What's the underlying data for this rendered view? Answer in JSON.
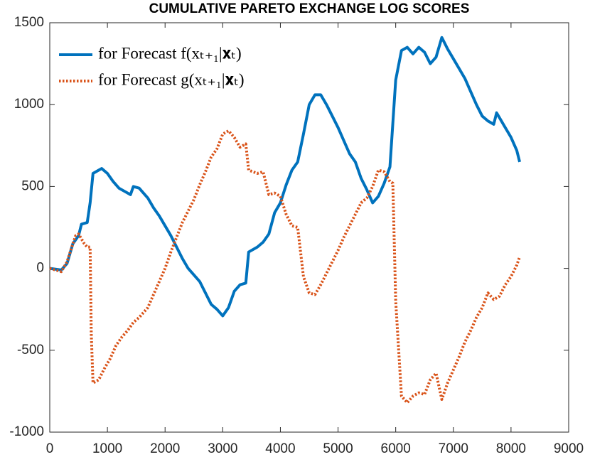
{
  "chart_data": {
    "type": "line",
    "title": "CUMULATIVE  PARETO  EXCHANGE  LOG SCORES",
    "xlim": [
      0,
      9000
    ],
    "xticks": [
      0,
      1000,
      2000,
      3000,
      4000,
      5000,
      6000,
      7000,
      8000,
      9000
    ],
    "ylim": [
      -1000,
      1500
    ],
    "yticks": [
      -1000,
      -500,
      0,
      500,
      1000,
      1500
    ],
    "legend": "upper left",
    "series": [
      {
        "name": "for Forecast f(xₜ₊₁|𝐱ₜ)",
        "color": "#0072bd",
        "style": "solid",
        "x": [
          0,
          200,
          300,
          400,
          500,
          550,
          650,
          700,
          750,
          850,
          900,
          1000,
          1100,
          1200,
          1300,
          1400,
          1450,
          1550,
          1700,
          1800,
          1900,
          2000,
          2100,
          2200,
          2300,
          2400,
          2500,
          2600,
          2700,
          2800,
          2900,
          3000,
          3100,
          3200,
          3300,
          3400,
          3450,
          3600,
          3700,
          3800,
          3900,
          4000,
          4100,
          4200,
          4300,
          4400,
          4500,
          4600,
          4700,
          4800,
          4900,
          5000,
          5100,
          5200,
          5300,
          5400,
          5500,
          5600,
          5700,
          5800,
          5900,
          6000,
          6100,
          6200,
          6300,
          6400,
          6500,
          6600,
          6700,
          6800,
          6900,
          7000,
          7100,
          7200,
          7300,
          7400,
          7500,
          7600,
          7700,
          7750,
          7800,
          7900,
          8000,
          8100,
          8150
        ],
        "values": [
          0,
          -10,
          30,
          150,
          200,
          270,
          280,
          400,
          580,
          600,
          610,
          580,
          530,
          490,
          470,
          450,
          500,
          490,
          430,
          370,
          320,
          260,
          200,
          130,
          60,
          0,
          -40,
          -80,
          -150,
          -220,
          -250,
          -290,
          -240,
          -140,
          -100,
          -90,
          100,
          130,
          160,
          210,
          340,
          400,
          510,
          600,
          650,
          820,
          1000,
          1060,
          1060,
          1000,
          930,
          860,
          780,
          700,
          650,
          550,
          480,
          400,
          440,
          520,
          620,
          1150,
          1330,
          1350,
          1310,
          1350,
          1320,
          1250,
          1290,
          1410,
          1340,
          1280,
          1220,
          1160,
          1080,
          1000,
          930,
          900,
          880,
          950,
          920,
          860,
          800,
          720,
          650
        ]
      },
      {
        "name": "for Forecast g(xₜ₊₁|𝐱ₜ)",
        "color": "#d95319",
        "style": "dotted",
        "x": [
          0,
          200,
          300,
          400,
          450,
          500,
          550,
          600,
          650,
          700,
          720,
          750,
          850,
          950,
          1050,
          1150,
          1250,
          1350,
          1450,
          1550,
          1700,
          1800,
          1900,
          2000,
          2100,
          2200,
          2300,
          2400,
          2500,
          2600,
          2700,
          2800,
          2900,
          3000,
          3100,
          3200,
          3300,
          3400,
          3450,
          3600,
          3700,
          3800,
          3900,
          4000,
          4100,
          4200,
          4300,
          4400,
          4500,
          4600,
          4700,
          4800,
          4900,
          5000,
          5100,
          5200,
          5300,
          5400,
          5500,
          5600,
          5700,
          5800,
          5900,
          5950,
          6000,
          6100,
          6200,
          6300,
          6400,
          6500,
          6600,
          6700,
          6800,
          6900,
          7000,
          7100,
          7200,
          7300,
          7400,
          7500,
          7600,
          7700,
          7800,
          7900,
          8000,
          8100,
          8150
        ],
        "values": [
          0,
          -20,
          40,
          150,
          200,
          210,
          180,
          150,
          130,
          130,
          -400,
          -700,
          -680,
          -610,
          -550,
          -470,
          -420,
          -380,
          -330,
          -300,
          -240,
          -160,
          -80,
          0,
          100,
          190,
          280,
          350,
          420,
          510,
          590,
          680,
          730,
          820,
          840,
          800,
          740,
          760,
          600,
          580,
          590,
          450,
          460,
          440,
          330,
          260,
          250,
          -50,
          -150,
          -160,
          -100,
          -30,
          40,
          110,
          190,
          260,
          330,
          400,
          430,
          500,
          600,
          590,
          530,
          520,
          -200,
          -780,
          -820,
          -780,
          -760,
          -770,
          -680,
          -640,
          -800,
          -700,
          -620,
          -540,
          -450,
          -380,
          -300,
          -240,
          -150,
          -190,
          -170,
          -100,
          -50,
          20,
          70
        ]
      }
    ]
  }
}
